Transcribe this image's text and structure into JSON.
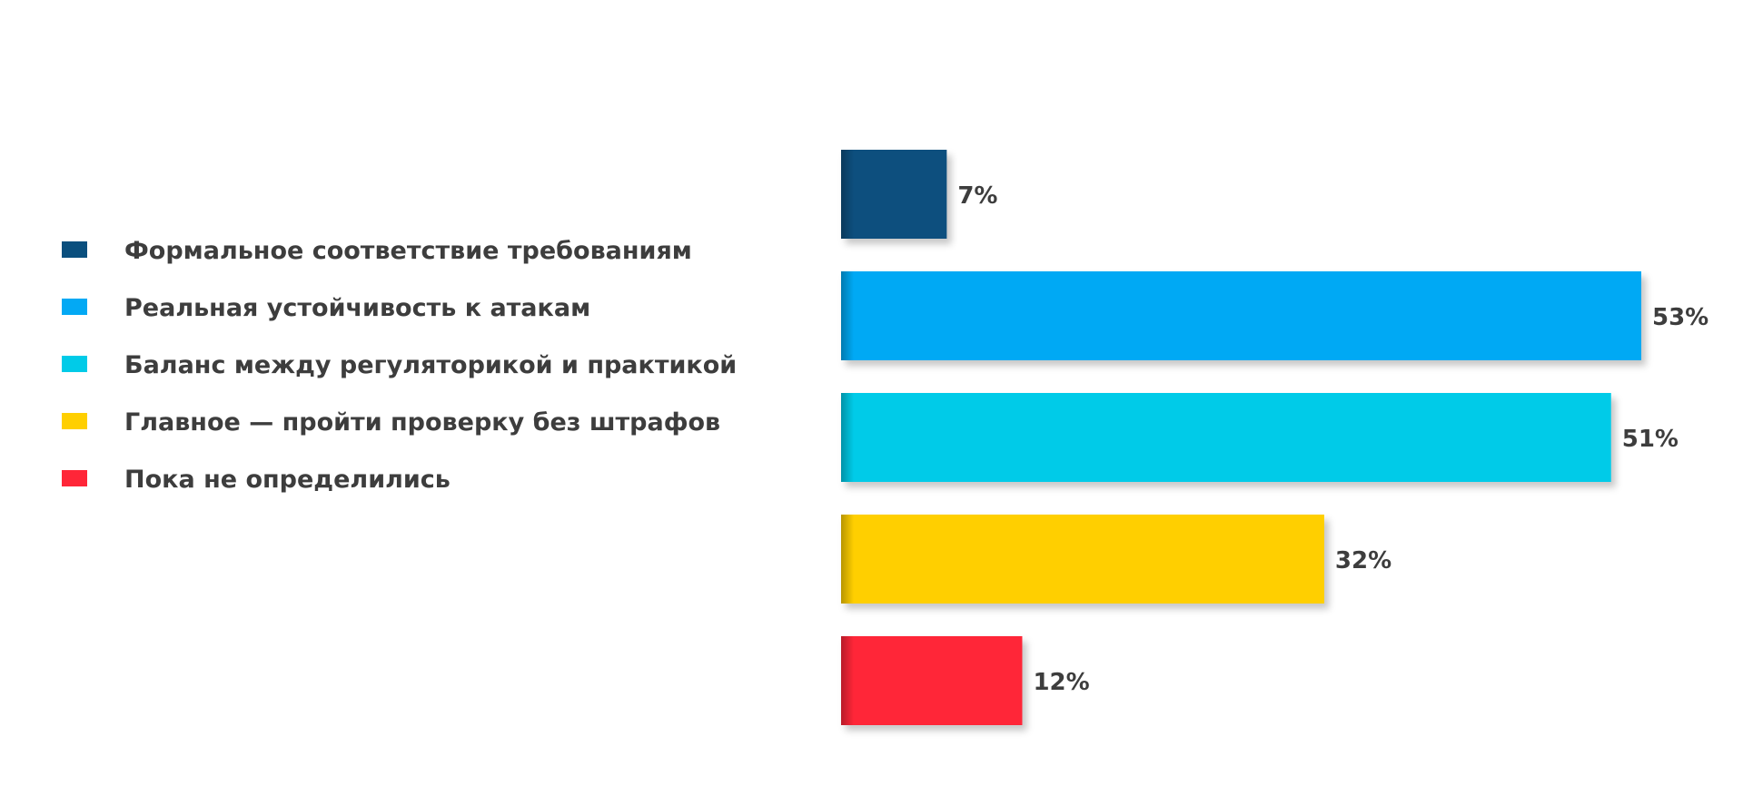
{
  "chart_data": {
    "type": "bar",
    "orientation": "horizontal",
    "categories": [
      "Формальное соответствие требованиям",
      "Реальная устойчивость к атакам",
      "Баланс между регуляторикой и практикой",
      "Главное — пройти проверку без штрафов",
      "Пока не определились"
    ],
    "values": [
      7,
      53,
      51,
      32,
      12
    ],
    "value_labels": [
      "7%",
      "53%",
      "51%",
      "32%",
      "12%"
    ],
    "colors": [
      "#0a4f7e",
      "#03a9f4",
      "#00cbe8",
      "#ffcf00",
      "#ff2638"
    ],
    "unit": "%",
    "xlim": [
      0,
      53
    ],
    "grid": false,
    "legend_position": "left"
  }
}
